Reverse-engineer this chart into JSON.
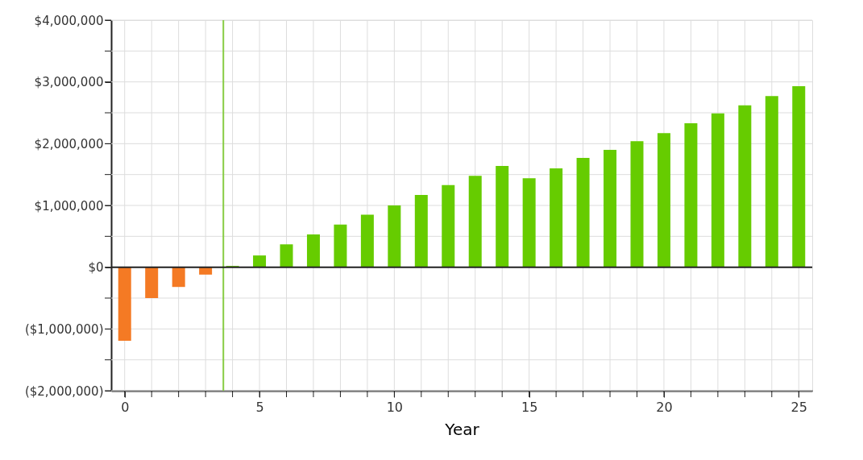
{
  "chart_data": {
    "type": "bar",
    "xlabel": "Year",
    "x": [
      0,
      1,
      2,
      3,
      4,
      5,
      6,
      7,
      8,
      9,
      10,
      11,
      12,
      13,
      14,
      15,
      16,
      17,
      18,
      19,
      20,
      21,
      22,
      23,
      24,
      25
    ],
    "values": [
      -1190000,
      -500000,
      -320000,
      -120000,
      20000,
      190000,
      370000,
      530000,
      690000,
      850000,
      1000000,
      1170000,
      1330000,
      1480000,
      1640000,
      1440000,
      1600000,
      1770000,
      1900000,
      2040000,
      2170000,
      2330000,
      2490000,
      2620000,
      2770000,
      2930000
    ],
    "colors": [
      "#f47a24",
      "#f47a24",
      "#f47a24",
      "#f47a24",
      "#66cc00",
      "#66cc00",
      "#66cc00",
      "#66cc00",
      "#66cc00",
      "#66cc00",
      "#66cc00",
      "#66cc00",
      "#66cc00",
      "#66cc00",
      "#66cc00",
      "#66cc00",
      "#66cc00",
      "#66cc00",
      "#66cc00",
      "#66cc00",
      "#66cc00",
      "#66cc00",
      "#66cc00",
      "#66cc00",
      "#66cc00",
      "#66cc00"
    ],
    "xlim": [
      -0.5,
      25.5
    ],
    "xticks": [
      0,
      {
        "value": 1,
        "label": null
      },
      {
        "value": 2,
        "label": null
      },
      {
        "value": 3,
        "label": null
      },
      {
        "value": 4,
        "label": null
      },
      5,
      {
        "value": 6,
        "label": null
      },
      {
        "value": 7,
        "label": null
      },
      {
        "value": 8,
        "label": null
      },
      {
        "value": 9,
        "label": null
      },
      10,
      {
        "value": 11,
        "label": null
      },
      {
        "value": 12,
        "label": null
      },
      {
        "value": 13,
        "label": null
      },
      {
        "value": 14,
        "label": null
      },
      15,
      {
        "value": 16,
        "label": null
      },
      {
        "value": 17,
        "label": null
      },
      {
        "value": 18,
        "label": null
      },
      {
        "value": 19,
        "label": null
      },
      20,
      {
        "value": 21,
        "label": null
      },
      {
        "value": 22,
        "label": null
      },
      {
        "value": 23,
        "label": null
      },
      {
        "value": 24,
        "label": null
      },
      25
    ],
    "ylim": [
      -2000000,
      4000000
    ],
    "yticks": [
      {
        "value": -2000000,
        "label": "($2,000,000)"
      },
      {
        "value": -1500000,
        "label": null
      },
      {
        "value": -1000000,
        "label": "($1,000,000)"
      },
      {
        "value": -500000,
        "label": null
      },
      {
        "value": 0,
        "label": "$0"
      },
      {
        "value": 500000,
        "label": null
      },
      {
        "value": 1000000,
        "label": "$1,000,000"
      },
      {
        "value": 1500000,
        "label": null
      },
      {
        "value": 2000000,
        "label": "$2,000,000"
      },
      {
        "value": 2500000,
        "label": null
      },
      {
        "value": 3000000,
        "label": "$3,000,000"
      },
      {
        "value": 3500000,
        "label": null
      },
      {
        "value": 4000000,
        "label": "$4,000,000"
      }
    ],
    "ref_lines": [
      {
        "axis": "x",
        "value": 3.66,
        "label": null,
        "color": "#88cc44"
      },
      {
        "axis": "y",
        "value": 0,
        "label": null,
        "color": "#222222"
      }
    ],
    "grid": true
  }
}
